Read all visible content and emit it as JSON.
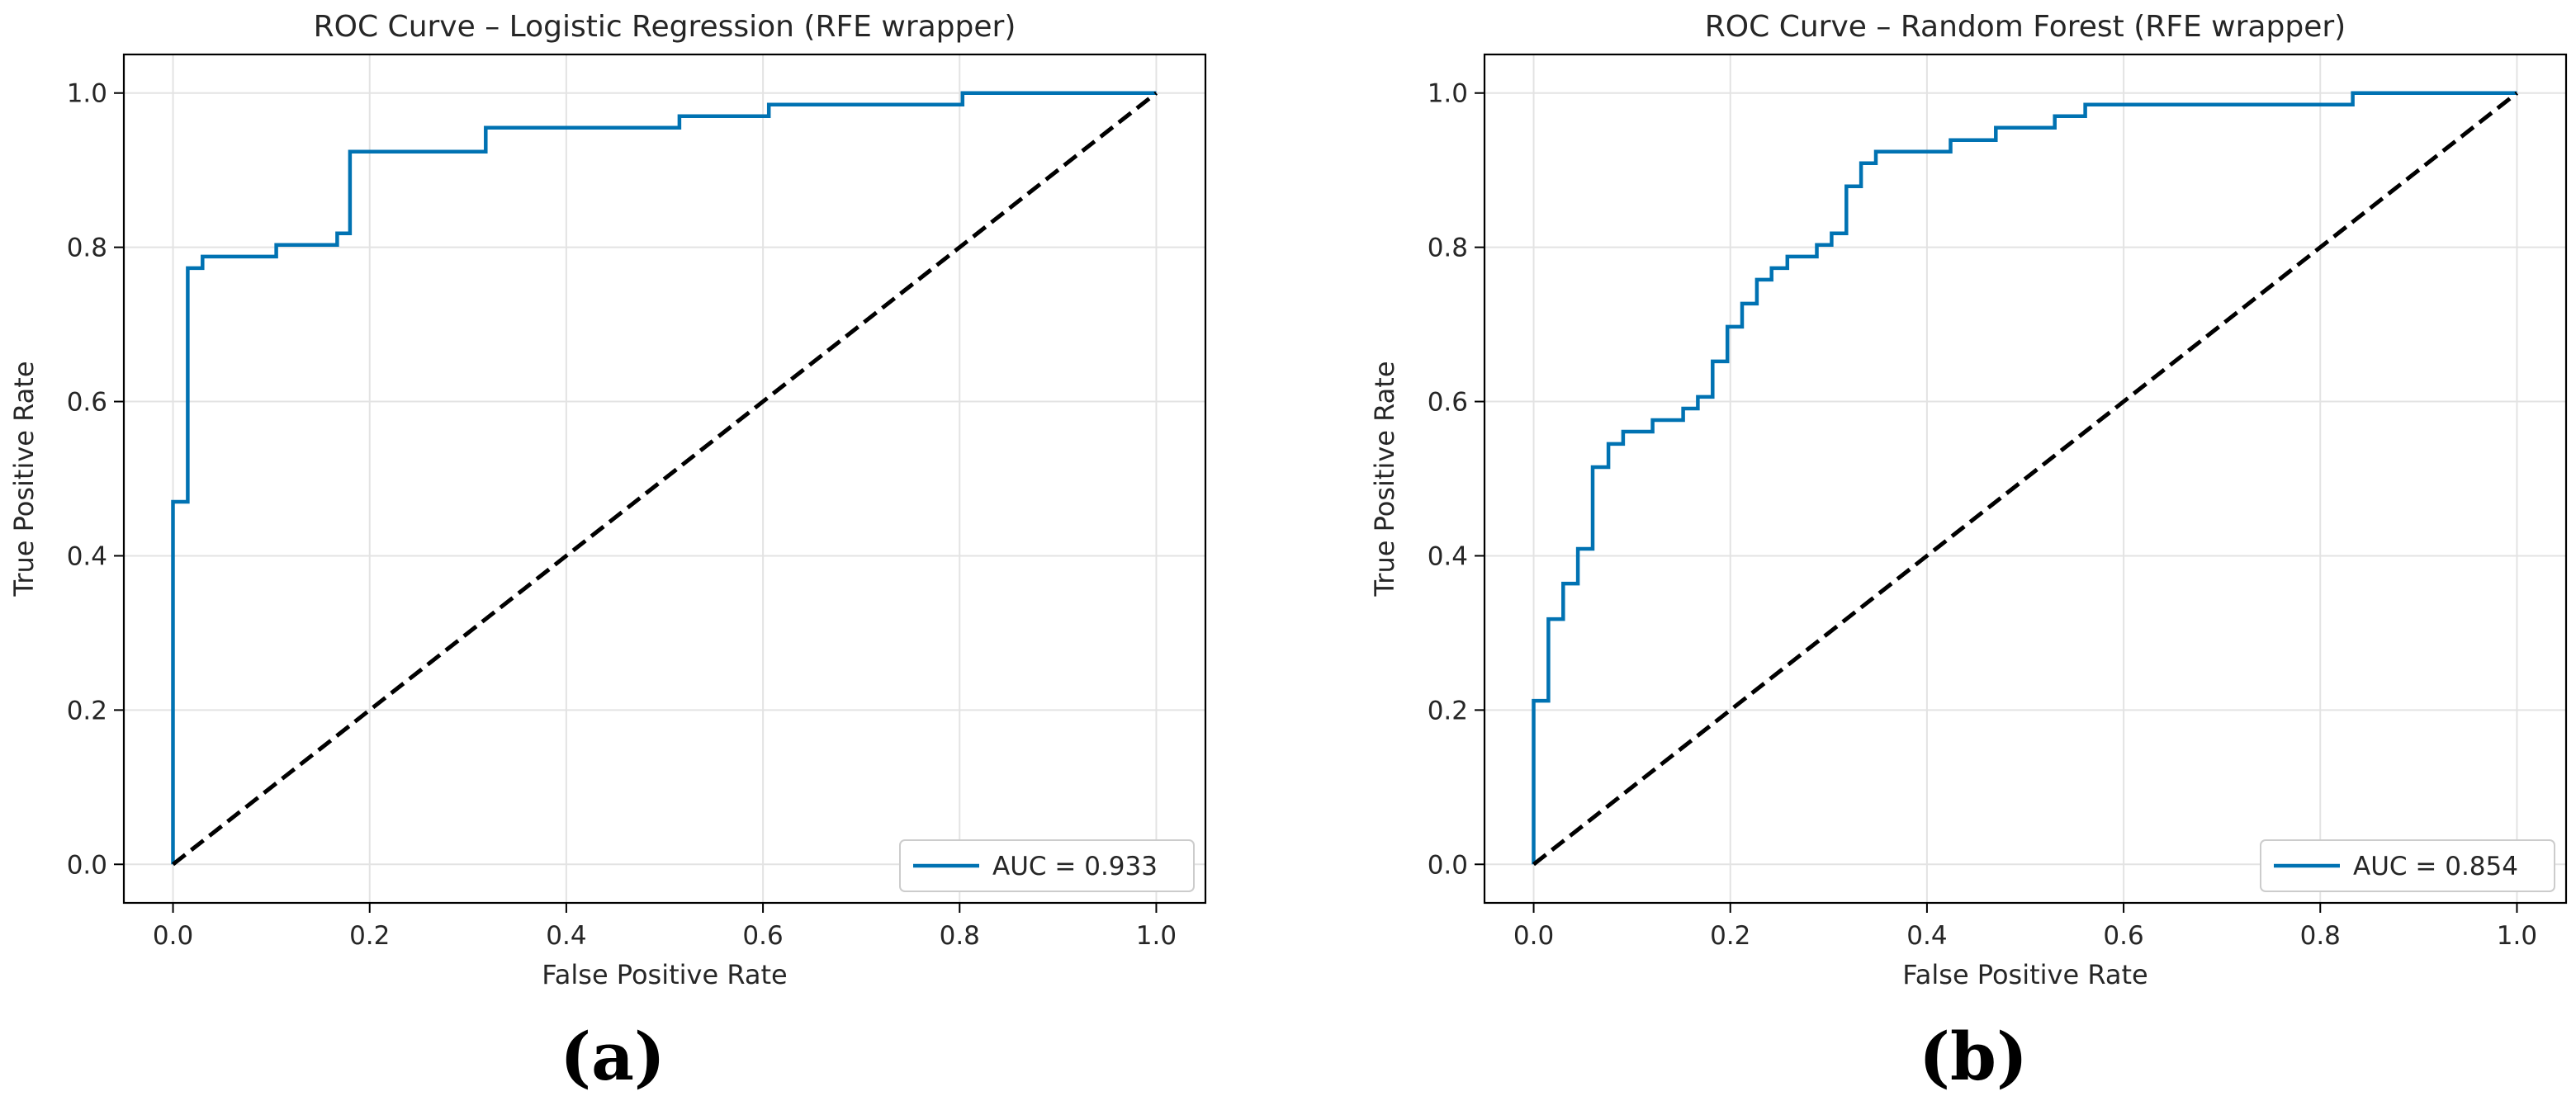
{
  "chart_data": [
    {
      "type": "line",
      "title": "ROC Curve – Logistic Regression (RFE wrapper)",
      "xlabel": "False Positive Rate",
      "ylabel": "True Positive Rate",
      "xlim": [
        -0.05,
        1.05
      ],
      "ylim": [
        -0.05,
        1.05
      ],
      "xticks": [
        "0.0",
        "0.2",
        "0.4",
        "0.6",
        "0.8",
        "1.0"
      ],
      "yticks": [
        "0.0",
        "0.2",
        "0.4",
        "0.6",
        "0.8",
        "1.0"
      ],
      "grid": true,
      "legend_position": "lower-right",
      "colors": {
        "roc": "#0072b2",
        "diagonal": "#000000"
      },
      "series": [
        {
          "name": "AUC = 0.933",
          "style": "solid",
          "x": [
            0.0,
            0.0,
            0.0,
            0.015,
            0.015,
            0.03,
            0.03,
            0.105,
            0.105,
            0.167,
            0.167,
            0.18,
            0.18,
            0.318,
            0.318,
            0.515,
            0.515,
            0.606,
            0.606,
            0.803,
            0.803,
            1.0
          ],
          "y": [
            0.0,
            0.0,
            0.47,
            0.47,
            0.773,
            0.773,
            0.788,
            0.788,
            0.803,
            0.803,
            0.818,
            0.818,
            0.924,
            0.924,
            0.955,
            0.955,
            0.97,
            0.97,
            0.985,
            0.985,
            1.0,
            1.0
          ]
        },
        {
          "name": "",
          "style": "dashed",
          "x": [
            0.0,
            1.0
          ],
          "y": [
            0.0,
            1.0
          ]
        }
      ]
    },
    {
      "type": "line",
      "title": "ROC Curve – Random Forest (RFE wrapper)",
      "xlabel": "False Positive Rate",
      "ylabel": "True Positive Rate",
      "xlim": [
        -0.05,
        1.05
      ],
      "ylim": [
        -0.05,
        1.05
      ],
      "xticks": [
        "0.0",
        "0.2",
        "0.4",
        "0.6",
        "0.8",
        "1.0"
      ],
      "yticks": [
        "0.0",
        "0.2",
        "0.4",
        "0.6",
        "0.8",
        "1.0"
      ],
      "grid": true,
      "legend_position": "lower-right",
      "colors": {
        "roc": "#0072b2",
        "diagonal": "#000000"
      },
      "series": [
        {
          "name": "AUC = 0.854",
          "style": "solid",
          "x": [
            0.0,
            0.0,
            0.0,
            0.015,
            0.015,
            0.03,
            0.03,
            0.045,
            0.045,
            0.06,
            0.06,
            0.076,
            0.076,
            0.091,
            0.091,
            0.121,
            0.121,
            0.152,
            0.152,
            0.167,
            0.167,
            0.182,
            0.182,
            0.197,
            0.197,
            0.212,
            0.212,
            0.227,
            0.227,
            0.242,
            0.242,
            0.258,
            0.258,
            0.288,
            0.288,
            0.303,
            0.303,
            0.318,
            0.318,
            0.333,
            0.333,
            0.348,
            0.348,
            0.424,
            0.424,
            0.47,
            0.47,
            0.53,
            0.53,
            0.561,
            0.561,
            0.833,
            0.833,
            1.0
          ],
          "y": [
            0.0,
            0.0,
            0.212,
            0.212,
            0.318,
            0.318,
            0.364,
            0.364,
            0.409,
            0.409,
            0.515,
            0.515,
            0.545,
            0.545,
            0.561,
            0.561,
            0.576,
            0.576,
            0.591,
            0.591,
            0.606,
            0.606,
            0.652,
            0.652,
            0.697,
            0.697,
            0.727,
            0.727,
            0.758,
            0.758,
            0.773,
            0.773,
            0.788,
            0.788,
            0.803,
            0.803,
            0.818,
            0.818,
            0.879,
            0.879,
            0.909,
            0.909,
            0.924,
            0.924,
            0.939,
            0.939,
            0.955,
            0.955,
            0.97,
            0.97,
            0.985,
            0.985,
            1.0,
            1.0
          ]
        },
        {
          "name": "",
          "style": "dashed",
          "x": [
            0.0,
            1.0
          ],
          "y": [
            0.0,
            1.0
          ]
        }
      ]
    }
  ],
  "panel_labels": [
    "(a)",
    "(b)"
  ]
}
